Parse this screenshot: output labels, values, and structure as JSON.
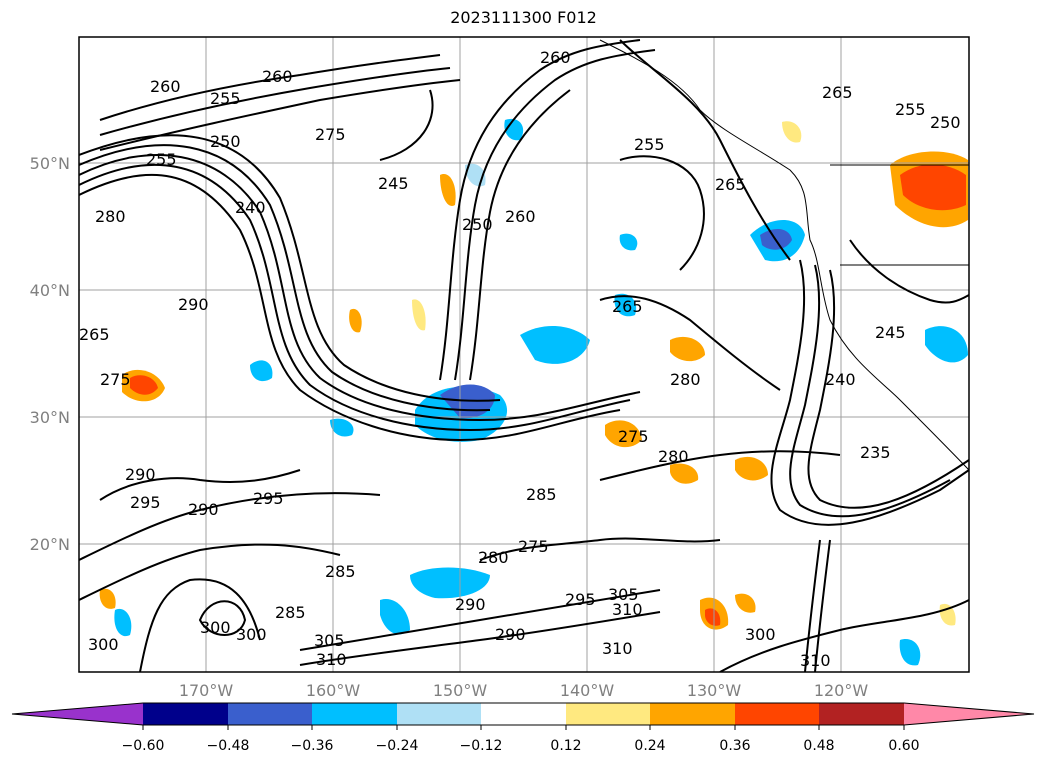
{
  "title": "2023111300 F012",
  "map": {
    "lat_labels": [
      "50°N",
      "40°N",
      "30°N",
      "20°N"
    ],
    "lon_labels": [
      "170°W",
      "160°W",
      "150°W",
      "140°W",
      "130°W",
      "120°W"
    ],
    "contour_labels": [
      "260",
      "260",
      "255",
      "250",
      "260",
      "255",
      "275",
      "245",
      "250",
      "260",
      "255",
      "265",
      "255",
      "250",
      "240",
      "265",
      "280",
      "290",
      "265",
      "275",
      "265",
      "280",
      "240",
      "245",
      "290",
      "295",
      "290",
      "295",
      "285",
      "275",
      "280",
      "235",
      "285",
      "275",
      "280",
      "290",
      "295",
      "305",
      "310",
      "300",
      "300",
      "285",
      "300",
      "305",
      "310",
      "310",
      "290",
      "310",
      "300"
    ]
  },
  "colorbar": {
    "ticks": [
      "−0.60",
      "−0.48",
      "−0.36",
      "−0.24",
      "−0.12",
      "0.12",
      "0.24",
      "0.36",
      "0.48",
      "0.60"
    ],
    "colors": [
      "#9932cc",
      "#00008b",
      "#3a5fcd",
      "#00bfff",
      "#afe0f5",
      "#ffffff",
      "#ffe980",
      "#ffa500",
      "#ff4500",
      "#b22222",
      "#ff88a8"
    ]
  }
}
